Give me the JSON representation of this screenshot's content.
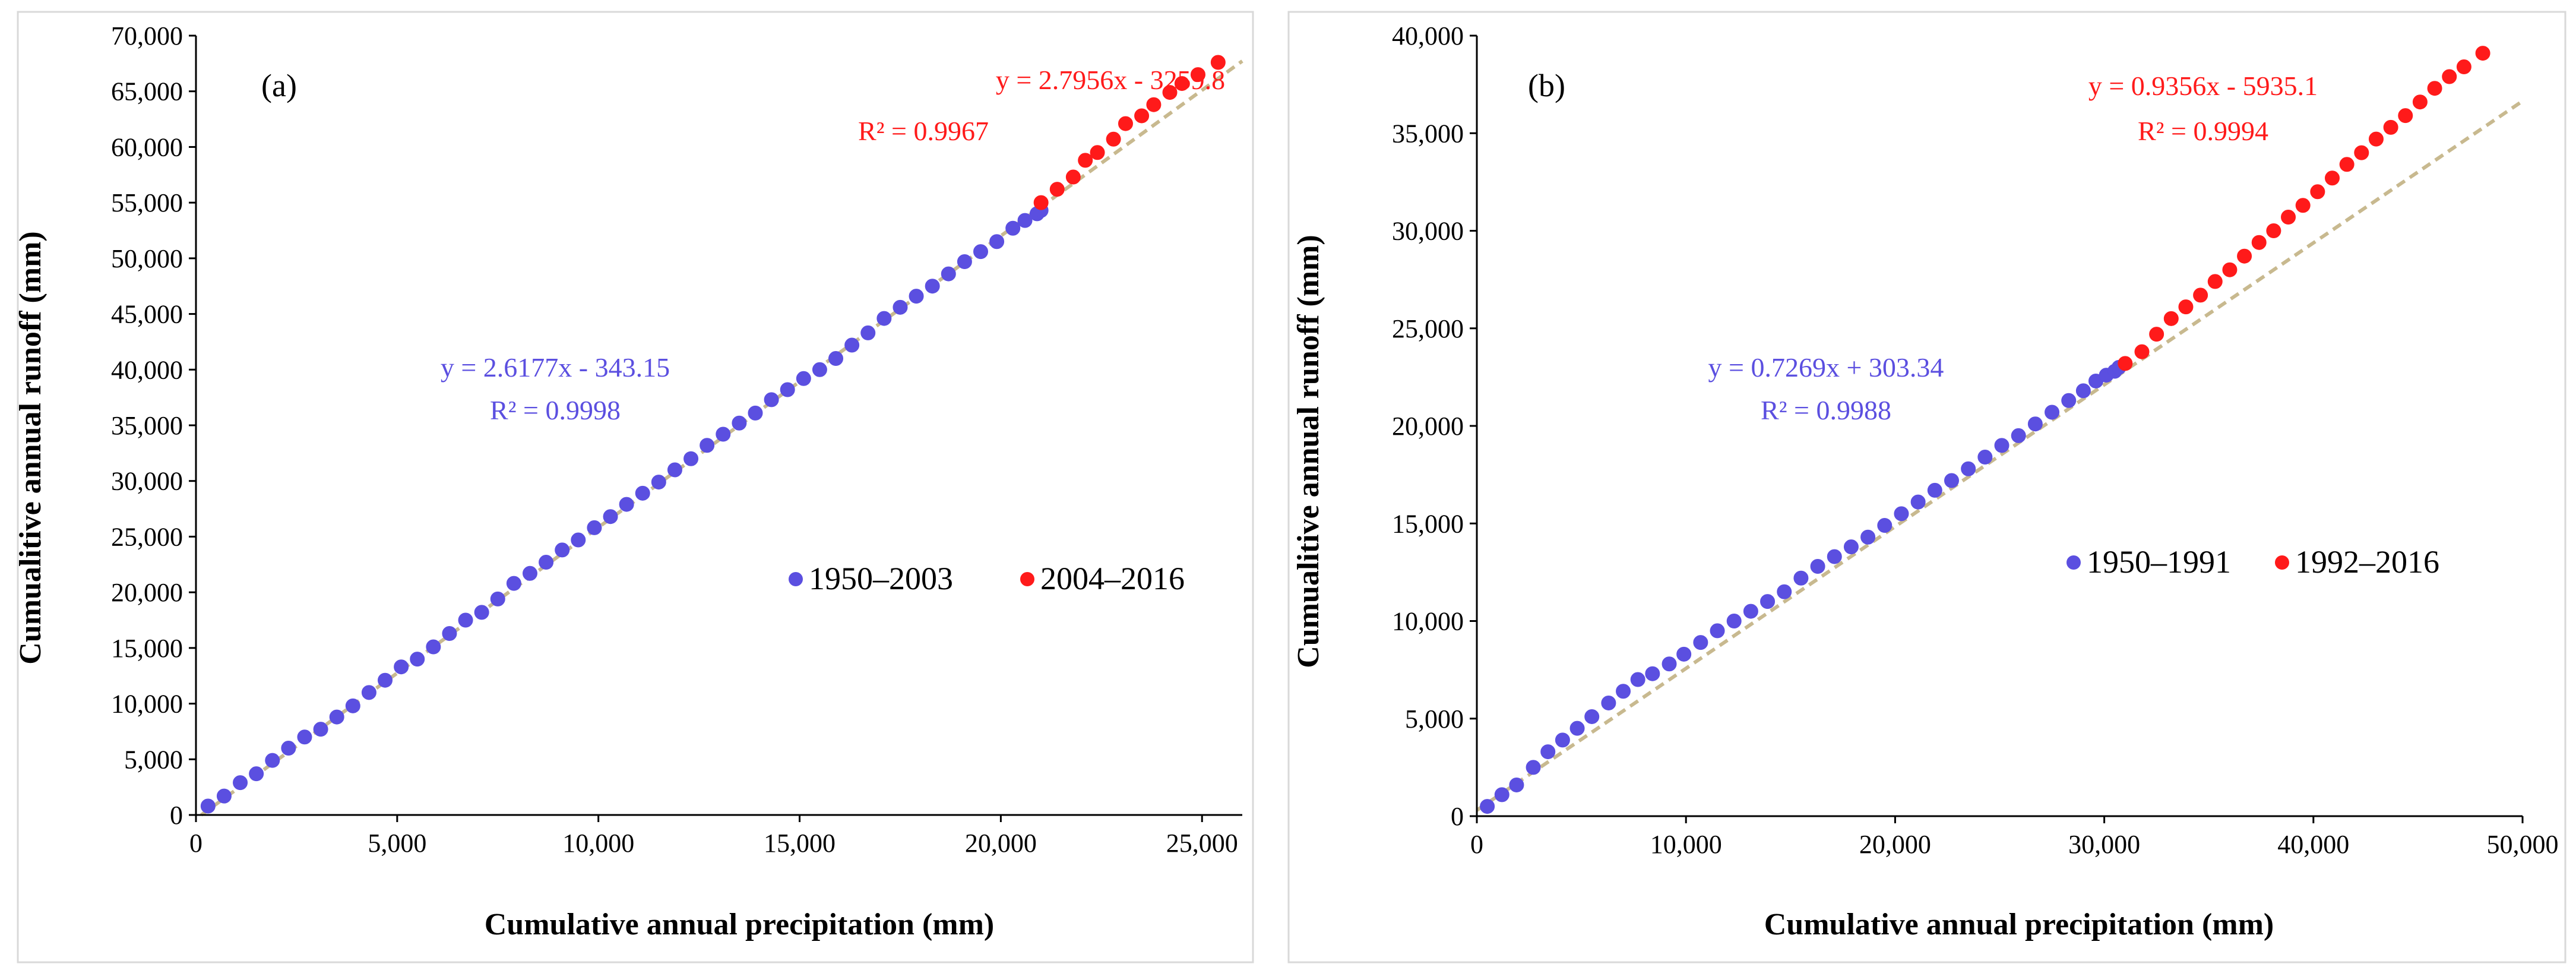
{
  "colors": {
    "series_early": "#5b4fe0",
    "series_late": "#ff1a1a",
    "trend": "#c8b98f",
    "axis": "#000000",
    "frame": "#d9d9d9"
  },
  "chart_data": [
    {
      "type": "scatter",
      "panel_label": "(a)",
      "xlabel": "Cumulative annual precipitation (mm)",
      "ylabel": "Cumualitive annual runoff (mm)",
      "xlim": [
        0,
        26000
      ],
      "ylim": [
        0,
        70000
      ],
      "xticks": [
        0,
        5000,
        10000,
        15000,
        20000,
        25000
      ],
      "yticks": [
        0,
        5000,
        10000,
        15000,
        20000,
        25000,
        30000,
        35000,
        40000,
        45000,
        50000,
        55000,
        60000,
        65000,
        70000
      ],
      "xtick_labels": [
        "0",
        "5,000",
        "10,000",
        "15,000",
        "20,000",
        "25,000"
      ],
      "ytick_labels": [
        "0",
        "5,000",
        "10,000",
        "15,000",
        "20,000",
        "25,000",
        "30,000",
        "35,000",
        "40,000",
        "45,000",
        "50,000",
        "55,000",
        "60,000",
        "65,000",
        "70,000"
      ],
      "grid": false,
      "legend_position": "center-right",
      "series": [
        {
          "name": "1950–2003",
          "color": "#5b4fe0",
          "slope": 2.6177,
          "intercept": -343.15,
          "equation": "y = 2.6177x - 343.15",
          "r2": "R² = 0.9998",
          "x": [
            300,
            700,
            1100,
            1500,
            1900,
            2300,
            2700,
            3100,
            3500,
            3900,
            4300,
            4700,
            5100,
            5500,
            5900,
            6300,
            6700,
            7100,
            7500,
            7900,
            8300,
            8700,
            9100,
            9500,
            9900,
            10300,
            10700,
            11100,
            11500,
            11900,
            12300,
            12700,
            13100,
            13500,
            13900,
            14300,
            14700,
            15100,
            15500,
            15900,
            16300,
            16700,
            17100,
            17500,
            17900,
            18300,
            18700,
            19100,
            19500,
            19900,
            20300,
            20600,
            20900,
            21000
          ],
          "y": [
            800,
            1700,
            2900,
            3700,
            4900,
            6000,
            7000,
            7700,
            8800,
            9800,
            11000,
            12100,
            13300,
            14000,
            15100,
            16300,
            17500,
            18200,
            19400,
            20800,
            21700,
            22700,
            23800,
            24700,
            25800,
            26800,
            27900,
            28900,
            29900,
            31000,
            32000,
            33200,
            34200,
            35200,
            36100,
            37300,
            38200,
            39200,
            40000,
            41000,
            42200,
            43300,
            44600,
            45600,
            46600,
            47500,
            48600,
            49700,
            50600,
            51500,
            52700,
            53400,
            54000,
            54300
          ]
        },
        {
          "name": "2004–2016",
          "color": "#ff1a1a",
          "slope": 2.7956,
          "intercept": -3259.8,
          "equation": "y = 2.7956x - 3259.8",
          "r2": "R² = 0.9967",
          "x": [
            21000,
            21400,
            21800,
            22100,
            22400,
            22800,
            23100,
            23500,
            23800,
            24200,
            24500,
            24900,
            25400
          ],
          "y": [
            55000,
            56200,
            57300,
            58800,
            59500,
            60700,
            62100,
            62800,
            63800,
            64900,
            65700,
            66500,
            67600
          ]
        }
      ]
    },
    {
      "type": "scatter",
      "panel_label": "(b)",
      "xlabel": "Cumulative annual precipitation (mm)",
      "ylabel": "Cumualitive annual runoff (mm)",
      "xlim": [
        0,
        50000
      ],
      "ylim": [
        0,
        40000
      ],
      "xticks": [
        0,
        10000,
        20000,
        30000,
        40000,
        50000
      ],
      "yticks": [
        0,
        5000,
        10000,
        15000,
        20000,
        25000,
        30000,
        35000,
        40000
      ],
      "xtick_labels": [
        "0",
        "10,000",
        "20,000",
        "30,000",
        "40,000",
        "50,000"
      ],
      "ytick_labels": [
        "0",
        "5,000",
        "10,000",
        "15,000",
        "20,000",
        "25,000",
        "30,000",
        "35,000",
        "40,000"
      ],
      "grid": false,
      "legend_position": "center-right",
      "series": [
        {
          "name": "1950–1991",
          "color": "#5b4fe0",
          "slope": 0.7269,
          "intercept": 303.34,
          "equation": "y = 0.7269x + 303.34",
          "r2": "R² = 0.9988",
          "x": [
            500,
            1200,
            1900,
            2700,
            3400,
            4100,
            4800,
            5500,
            6300,
            7000,
            7700,
            8400,
            9200,
            9900,
            10700,
            11500,
            12300,
            13100,
            13900,
            14700,
            15500,
            16300,
            17100,
            17900,
            18700,
            19500,
            20300,
            21100,
            21900,
            22700,
            23500,
            24300,
            25100,
            25900,
            26700,
            27500,
            28300,
            29000,
            29600,
            30100,
            30500,
            30700
          ],
          "y": [
            500,
            1100,
            1600,
            2500,
            3300,
            3900,
            4500,
            5100,
            5800,
            6400,
            7000,
            7300,
            7800,
            8300,
            8900,
            9500,
            10000,
            10500,
            11000,
            11500,
            12200,
            12800,
            13300,
            13800,
            14300,
            14900,
            15500,
            16100,
            16700,
            17200,
            17800,
            18400,
            19000,
            19500,
            20100,
            20700,
            21300,
            21800,
            22300,
            22600,
            22800,
            23000
          ]
        },
        {
          "name": "1992–2016",
          "color": "#ff1a1a",
          "slope": 0.9356,
          "intercept": -5935.1,
          "equation": "y = 0.9356x - 5935.1",
          "r2": "R² = 0.9994",
          "x": [
            31000,
            31800,
            32500,
            33200,
            33900,
            34600,
            35300,
            36000,
            36700,
            37400,
            38100,
            38800,
            39500,
            40200,
            40900,
            41600,
            42300,
            43000,
            43700,
            44400,
            45100,
            45800,
            46500,
            47200,
            48100
          ],
          "y": [
            23200,
            23800,
            24700,
            25500,
            26100,
            26700,
            27400,
            28000,
            28700,
            29400,
            30000,
            30700,
            31300,
            32000,
            32700,
            33400,
            34000,
            34700,
            35300,
            35900,
            36600,
            37300,
            37900,
            38400,
            39100
          ]
        }
      ]
    }
  ]
}
